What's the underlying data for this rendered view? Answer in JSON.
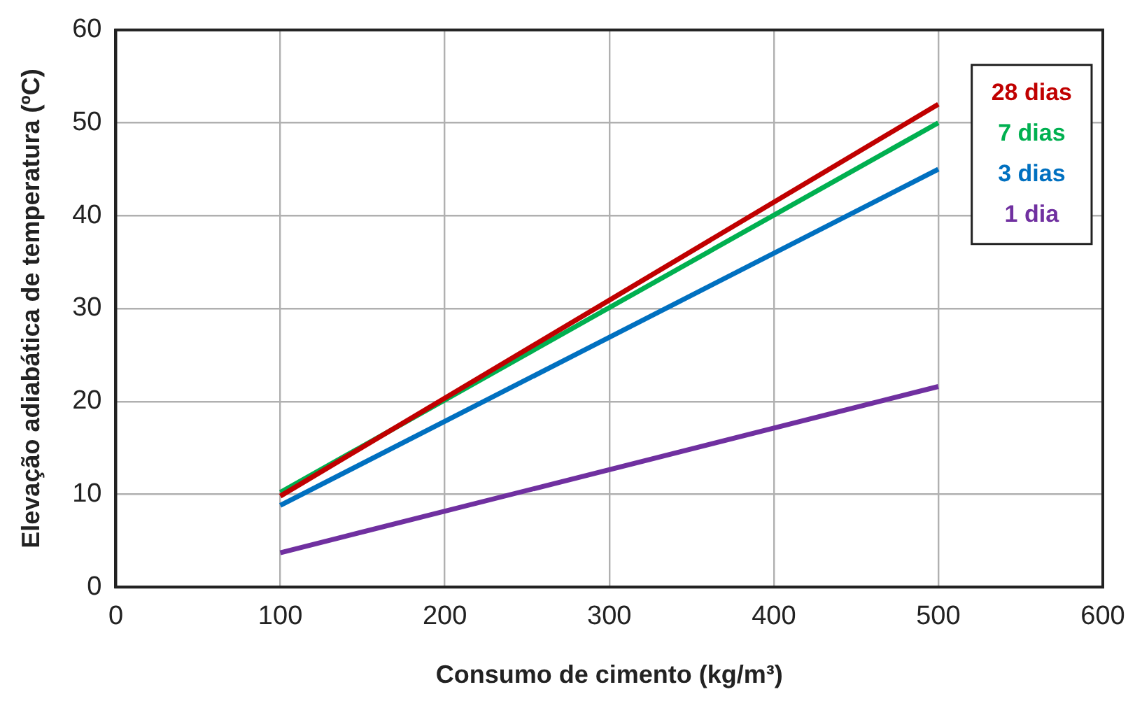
{
  "chart_data": {
    "type": "line",
    "xlabel": "Consumo de cimento (kg/m³)",
    "ylabel": "Elevação adiabática de temperatura (ºC)",
    "x": [
      100,
      500
    ],
    "series": [
      {
        "name": "28 dias",
        "color": "#c00000",
        "values": [
          9.8,
          52
        ]
      },
      {
        "name": "7 dias",
        "color": "#00b050",
        "values": [
          10.2,
          50
        ]
      },
      {
        "name": "3 dias",
        "color": "#0070c0",
        "values": [
          8.8,
          45
        ]
      },
      {
        "name": "1 dia",
        "color": "#7030a0",
        "values": [
          3.7,
          21.6
        ]
      }
    ],
    "xlim": [
      0,
      600
    ],
    "xticks": [
      0,
      100,
      200,
      300,
      400,
      500,
      600
    ],
    "ylim": [
      0,
      60
    ],
    "yticks": [
      0,
      10,
      20,
      30,
      40,
      50,
      60
    ],
    "grid": true,
    "legend": "top right",
    "marker": "none",
    "line_style": "solid"
  }
}
